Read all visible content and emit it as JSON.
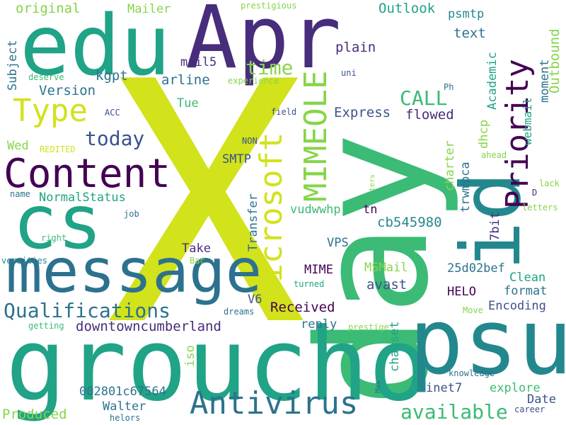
{
  "palette": {
    "yellow": "#d2e21b",
    "lime": "#86d549",
    "green": "#3bbb75",
    "teal": "#20a386",
    "blue_teal": "#23888e",
    "blue": "#2c728e",
    "slate": "#3b528b",
    "indigo": "#472d7b",
    "purple": "#440154"
  },
  "words": [
    "X",
    "day",
    "groucho",
    "psu",
    "Apr",
    "edu",
    "cs",
    "message",
    "id",
    "Content",
    "Microsoft",
    "MIMEOLE",
    "Priority",
    "Type",
    "Antivirus",
    "Qualifications",
    "available",
    "today",
    "CALL",
    "time",
    "Received",
    "downtowncumberland",
    "Express",
    "flowed",
    "avast",
    "Version",
    "arline",
    "kgpt",
    "mail5",
    "Subject",
    "original",
    "Mailer",
    "Outlook",
    "psmtp",
    "text",
    "plain",
    "webmail",
    "Outbound",
    "moment",
    "Academic",
    "dhcp",
    "charter",
    "trwmpca",
    "7bit",
    "cb545980",
    "VPS",
    "tn",
    "vudwwhp",
    "Transfer",
    "SMTP",
    "NON",
    "field",
    "NormalStatus",
    "Wed",
    "Tue",
    "HELO",
    "format",
    "Encoding",
    "Clean",
    "25d02bef",
    "MSMail",
    "MIME",
    "V6",
    "Take",
    "reply",
    "charset",
    "iso",
    "002801c67564",
    "Walter",
    "Produced",
    "inet7",
    "explore",
    "Date",
    "career",
    "knowledge",
    "Mas",
    "prestige",
    "dreams",
    "getting",
    "helors",
    "Move",
    "turned",
    "versities",
    "right",
    "job",
    "name",
    "Bac",
    "letters",
    "lack",
    "D",
    "ahead",
    "ters",
    "Ph",
    "uni",
    "ACC",
    "REDITED",
    "deserve",
    "experience",
    "prestigious"
  ]
}
